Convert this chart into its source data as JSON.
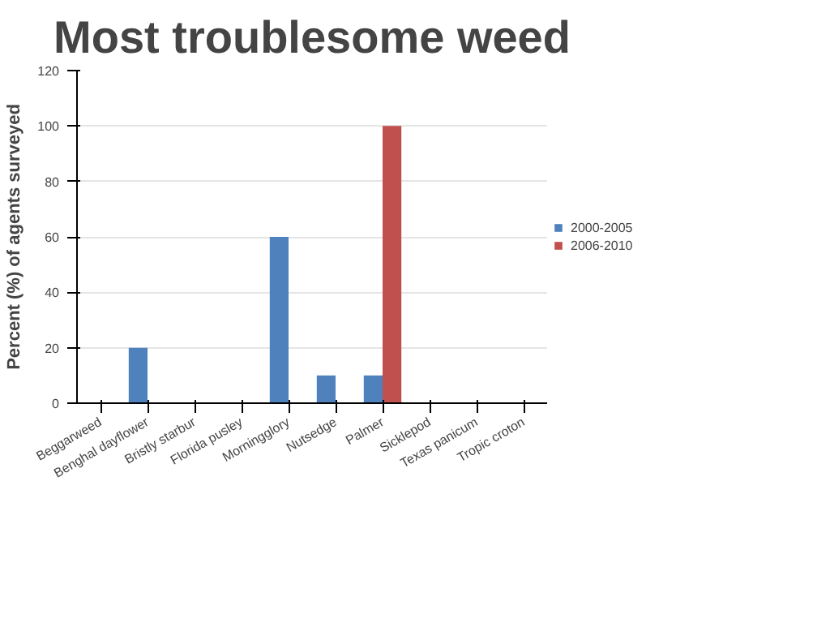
{
  "chart_data": {
    "type": "bar",
    "title": "Most troublesome weed",
    "ylabel": "Percent (%) of agents surveyed",
    "categories": [
      "Beggarweed",
      "Benghal dayflower",
      "Bristly starbur",
      "Florida pusley",
      "Morningglory",
      "Nutsedge",
      "Palmer",
      "Sicklepod",
      "Texas panicum",
      "Tropic croton"
    ],
    "series": [
      {
        "name": "2000-2005",
        "color": "#4f81bd",
        "values": [
          0,
          20,
          0,
          0,
          60,
          10,
          10,
          0,
          0,
          0
        ]
      },
      {
        "name": "2006-2010",
        "color": "#c0504d",
        "values": [
          0,
          0,
          0,
          0,
          0,
          0,
          100,
          0,
          0,
          0
        ]
      }
    ],
    "ylim": [
      0,
      120
    ],
    "yticks": [
      0,
      20,
      40,
      60,
      80,
      100,
      120
    ],
    "grid": "y",
    "legend": "right"
  }
}
